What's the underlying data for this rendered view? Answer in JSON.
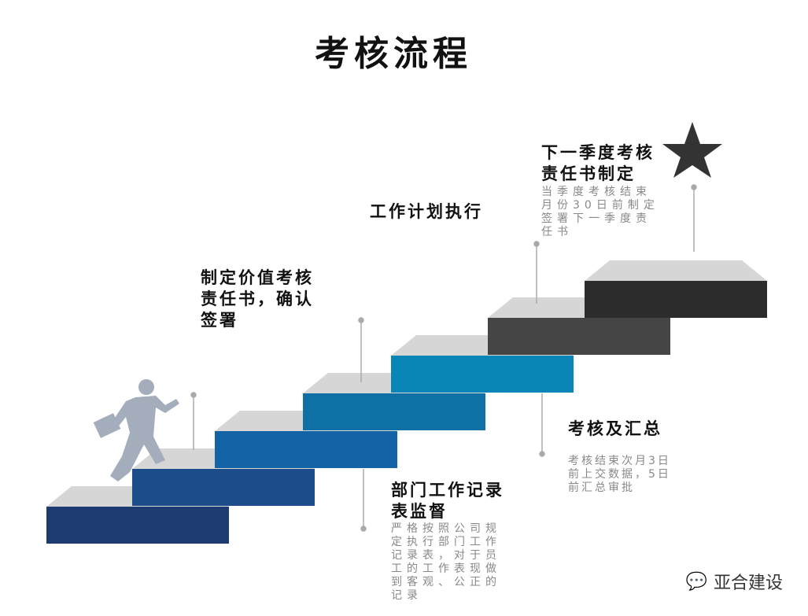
{
  "title": "考核流程",
  "steps": [
    {
      "heading": "制定价值考核责任书，确认签署",
      "lines": [
        "制定价值考核",
        "责任书，确认",
        "签署"
      ]
    },
    {
      "heading": "部门工作记录表监督",
      "lines": [
        "部门工作记录",
        "表监督"
      ],
      "desc": [
        "严格按照公司规",
        "定执行部门工作",
        "记录表，对于员",
        "工的工作表现做",
        "到客观、公正的",
        "记录"
      ]
    },
    {
      "heading": "工作计划执行"
    },
    {
      "heading": "考核及汇总",
      "desc": [
        "考核结束次月3日",
        "前上交数据，5日",
        "前汇总审批"
      ]
    },
    {
      "heading": "下一季度考核责任书制定",
      "lines": [
        "下一季度考核",
        "责任书制定"
      ],
      "desc": [
        "当季度考核结束",
        "月份30日前制定",
        "签署下一季度责",
        "任书"
      ]
    }
  ],
  "step_colors": [
    "#1d3b70",
    "#1c4c8a",
    "#1463a6",
    "#0e70a4",
    "#0a86b6",
    "#454545",
    "#2c2c2c"
  ],
  "logo": {
    "text": "亚合建设",
    "icon": "wechat-icon"
  }
}
